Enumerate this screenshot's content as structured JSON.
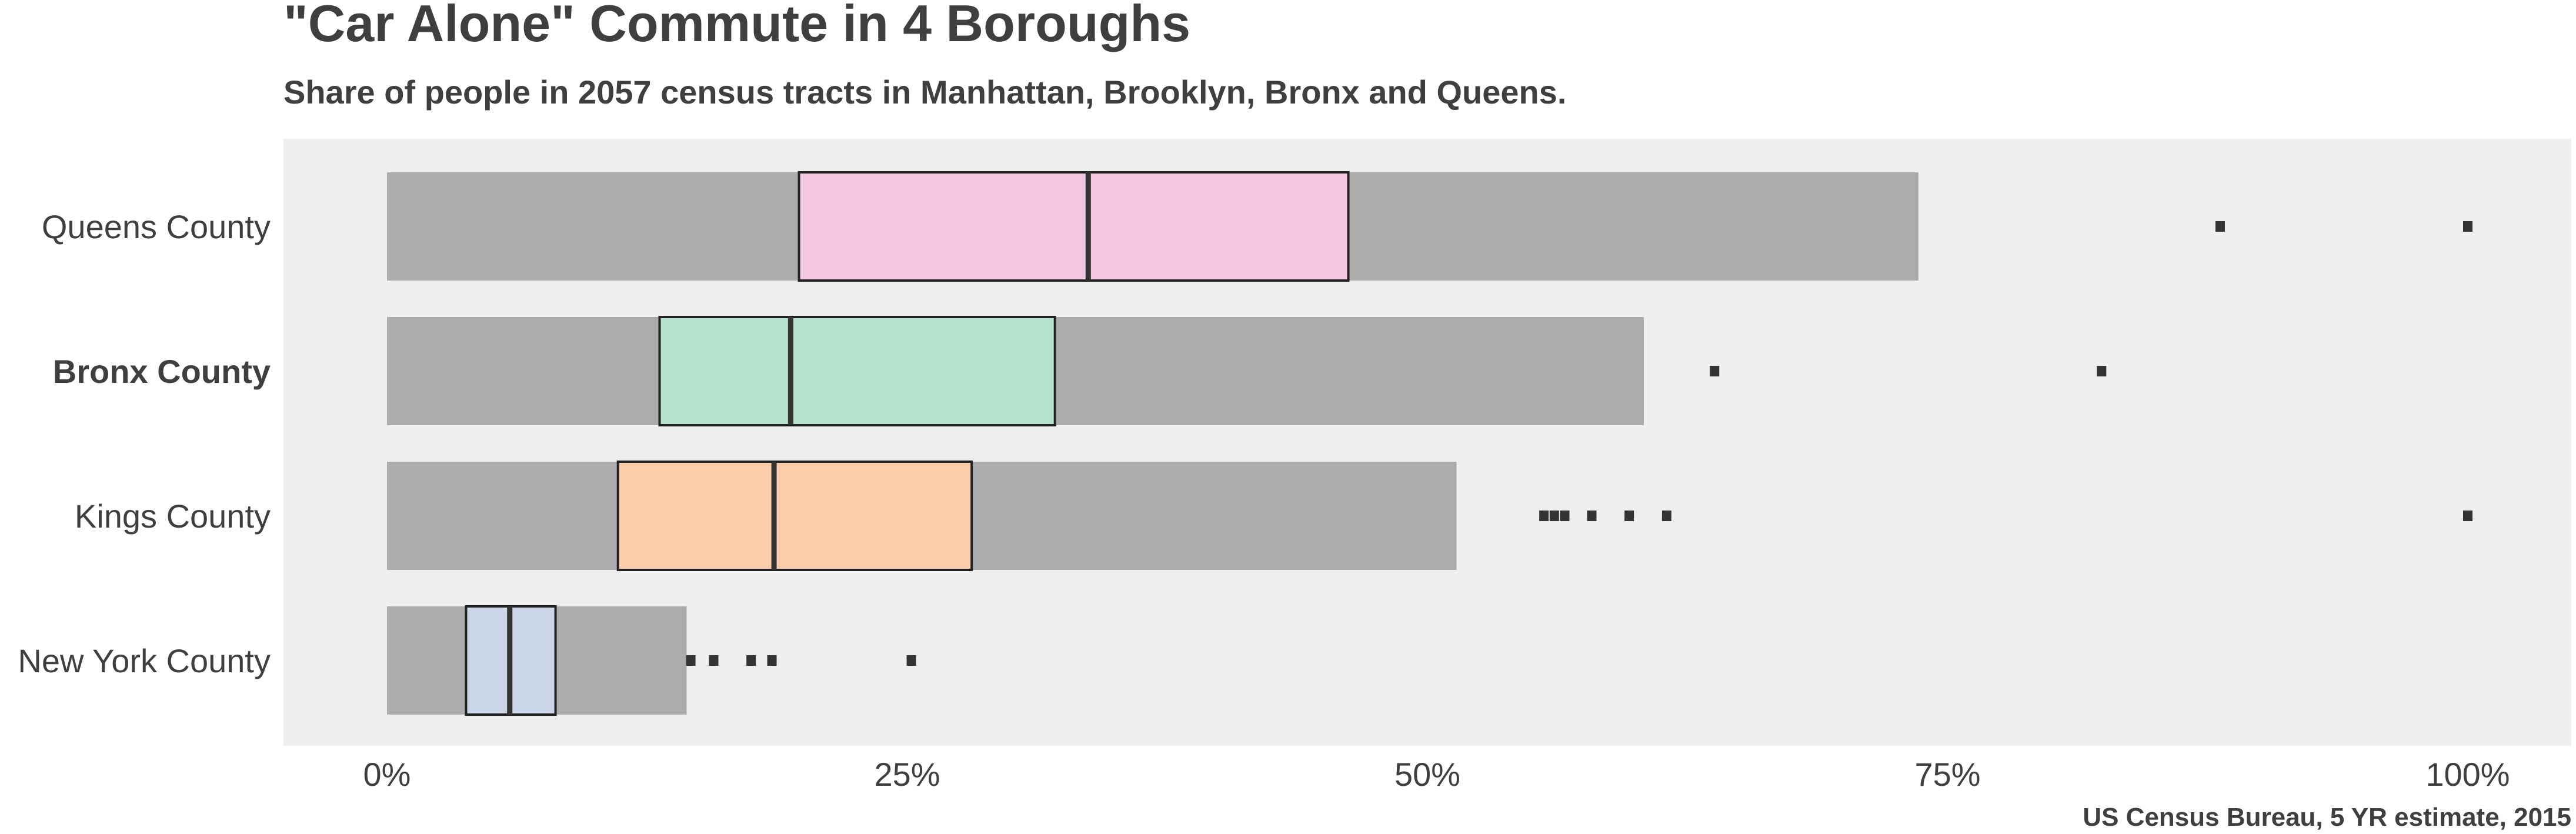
{
  "chart_data": {
    "type": "boxplot",
    "orientation": "horizontal",
    "title": "\"Car Alone\" Commute in 4 Boroughs",
    "subtitle": "Share of people in 2057 census tracts in Manhattan, Brooklyn, Bronx and Queens.",
    "caption": "US Census Bureau, 5 YR estimate, 2015",
    "xlim": [
      0,
      1
    ],
    "x_ticks": [
      {
        "value": 0,
        "label": "0%"
      },
      {
        "value": 0.25,
        "label": "25%"
      },
      {
        "value": 0.5,
        "label": "50%"
      },
      {
        "value": 0.75,
        "label": "75%"
      },
      {
        "value": 1.0,
        "label": "100%"
      }
    ],
    "grid": false,
    "panel_background": "#efefef",
    "range_bar_color": "#acacac",
    "outlier_color": "#333333",
    "series": [
      {
        "name": "Queens County",
        "bold": false,
        "color": "#f4c8e3",
        "min": 0.0,
        "q1": 0.198,
        "median": 0.337,
        "q3": 0.462,
        "max": 0.736,
        "outliers": [
          0.881,
          1.0
        ]
      },
      {
        "name": "Bronx County",
        "bold": true,
        "color": "#b3e2cd",
        "min": 0.0,
        "q1": 0.131,
        "median": 0.194,
        "q3": 0.321,
        "max": 0.604,
        "outliers": [
          0.638,
          0.824
        ]
      },
      {
        "name": "Kings County",
        "bold": false,
        "color": "#fdcdac",
        "min": 0.0,
        "q1": 0.111,
        "median": 0.186,
        "q3": 0.281,
        "max": 0.514,
        "outliers": [
          0.556,
          0.561,
          0.566,
          0.579,
          0.597,
          0.615,
          1.0
        ]
      },
      {
        "name": "New York County",
        "bold": false,
        "color": "#cbd5e8",
        "min": 0.0,
        "q1": 0.038,
        "median": 0.059,
        "q3": 0.081,
        "max": 0.144,
        "outliers": [
          0.146,
          0.157,
          0.175,
          0.185,
          0.252
        ]
      }
    ]
  }
}
